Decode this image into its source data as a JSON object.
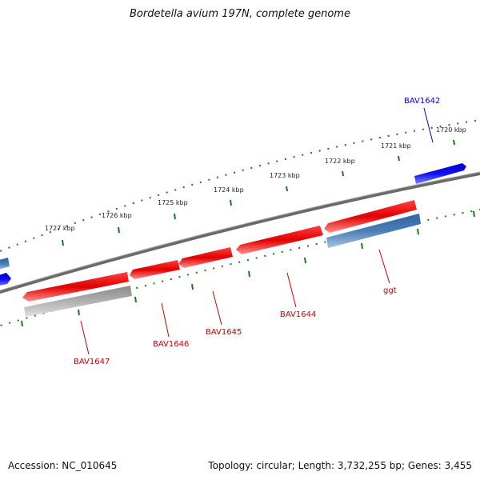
{
  "title": "Bordetella avium 197N, complete genome",
  "footer": {
    "accession": "Accession: NC_010645",
    "summary": "Topology: circular; Length: 3,732,255 bp; Genes: 3,455"
  },
  "colors": {
    "forward_gene": "#e01010",
    "reverse_gene": "#4a7fb5",
    "pseudo_gene": "#b5b5b5",
    "other_gene": "#1010e0",
    "backbone": "#808080",
    "tick": "#1a7a1a",
    "forward_label": "#cc0000",
    "reverse_label": "#0000cc"
  },
  "scale_labels": [
    "1720 kbp",
    "1721 kbp",
    "1722 kbp",
    "1723 kbp",
    "1724 kbp",
    "1725 kbp",
    "1726 kbp",
    "1727 kbp"
  ],
  "gene_labels": [
    "BAV1642",
    "ggt",
    "BAV1644",
    "BAV1645",
    "BAV1646",
    "BAV1647"
  ]
}
